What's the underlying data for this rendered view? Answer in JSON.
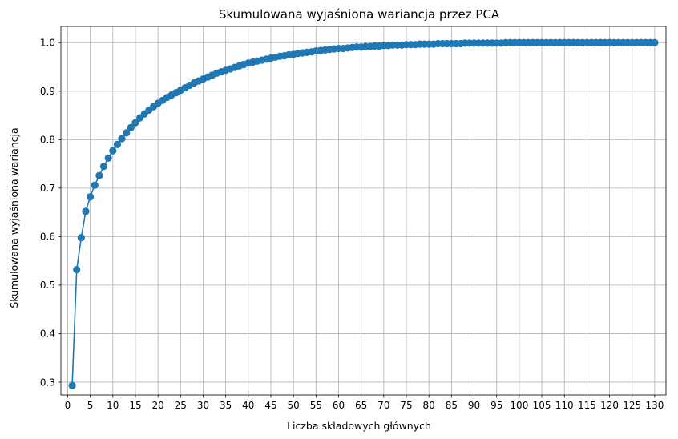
{
  "chart_data": {
    "type": "line",
    "title": "Skumulowana wyjaśniona wariancja przez PCA",
    "xlabel": "Liczba składowych głównych",
    "ylabel": "Skumulowana wyjaśniona wariancja",
    "xlim": [
      -1.5,
      132.5
    ],
    "ylim": [
      0.2735,
      1.0335
    ],
    "x_ticks": [
      0,
      5,
      10,
      15,
      20,
      25,
      30,
      35,
      40,
      45,
      50,
      55,
      60,
      65,
      70,
      75,
      80,
      85,
      90,
      95,
      100,
      105,
      110,
      115,
      120,
      125,
      130
    ],
    "y_ticks": [
      0.3,
      0.4,
      0.5,
      0.6,
      0.7,
      0.8,
      0.9,
      1.0
    ],
    "grid": true,
    "marker": "circle",
    "series": [
      {
        "color": "#1f77b4",
        "x": [
          1,
          2,
          3,
          4,
          5,
          6,
          7,
          8,
          9,
          10,
          11,
          12,
          13,
          14,
          15,
          16,
          17,
          18,
          19,
          20,
          21,
          22,
          23,
          24,
          25,
          26,
          27,
          28,
          29,
          30,
          31,
          32,
          33,
          34,
          35,
          36,
          37,
          38,
          39,
          40,
          41,
          42,
          43,
          44,
          45,
          46,
          47,
          48,
          49,
          50,
          51,
          52,
          53,
          54,
          55,
          56,
          57,
          58,
          59,
          60,
          61,
          62,
          63,
          64,
          65,
          66,
          67,
          68,
          69,
          70,
          71,
          72,
          73,
          74,
          75,
          76,
          77,
          78,
          79,
          80,
          81,
          82,
          83,
          84,
          85,
          86,
          87,
          88,
          89,
          90,
          91,
          92,
          93,
          94,
          95,
          96,
          97,
          98,
          99,
          100,
          101,
          102,
          103,
          104,
          105,
          106,
          107,
          108,
          109,
          110,
          111,
          112,
          113,
          114,
          115,
          116,
          117,
          118,
          119,
          120,
          121,
          122,
          123,
          124,
          125,
          126,
          127,
          128,
          129,
          130
        ],
        "y": [
          0.293,
          0.532,
          0.598,
          0.652,
          0.682,
          0.706,
          0.726,
          0.745,
          0.762,
          0.777,
          0.79,
          0.802,
          0.814,
          0.825,
          0.835,
          0.845,
          0.853,
          0.861,
          0.868,
          0.875,
          0.881,
          0.887,
          0.892,
          0.897,
          0.902,
          0.907,
          0.912,
          0.917,
          0.921,
          0.925,
          0.929,
          0.933,
          0.937,
          0.94,
          0.943,
          0.946,
          0.949,
          0.952,
          0.955,
          0.958,
          0.96,
          0.962,
          0.964,
          0.966,
          0.968,
          0.97,
          0.972,
          0.973,
          0.975,
          0.976,
          0.978,
          0.979,
          0.98,
          0.981,
          0.983,
          0.984,
          0.985,
          0.986,
          0.987,
          0.988,
          0.988,
          0.989,
          0.99,
          0.991,
          0.991,
          0.992,
          0.992,
          0.993,
          0.993,
          0.994,
          0.994,
          0.995,
          0.995,
          0.995,
          0.996,
          0.996,
          0.996,
          0.997,
          0.997,
          0.997,
          0.997,
          0.998,
          0.998,
          0.998,
          0.998,
          0.998,
          0.998,
          0.999,
          0.999,
          0.999,
          0.999,
          0.999,
          0.999,
          0.999,
          0.999,
          0.999,
          1.0,
          1.0,
          1.0,
          1.0,
          1.0,
          1.0,
          1.0,
          1.0,
          1.0,
          1.0,
          1.0,
          1.0,
          1.0,
          1.0,
          1.0,
          1.0,
          1.0,
          1.0,
          1.0,
          1.0,
          1.0,
          1.0,
          1.0,
          1.0,
          1.0,
          1.0,
          1.0,
          1.0,
          1.0,
          1.0,
          1.0,
          1.0,
          1.0,
          1.0
        ]
      }
    ]
  }
}
